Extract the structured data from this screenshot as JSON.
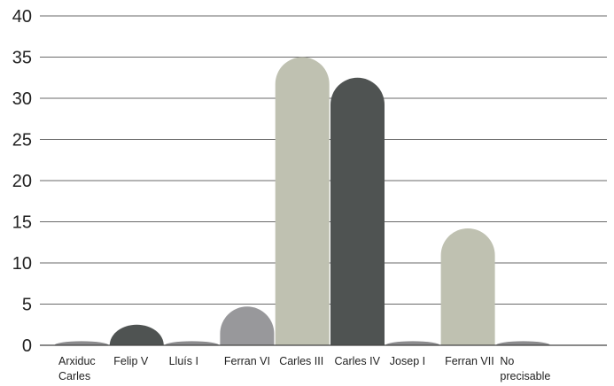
{
  "chart_data": {
    "type": "bar",
    "title": "",
    "xlabel": "",
    "ylabel": "",
    "ylim": [
      0,
      40
    ],
    "yticks": [
      0,
      5,
      10,
      15,
      20,
      25,
      30,
      35,
      40
    ],
    "grid": true,
    "legend": "none",
    "categories": [
      [
        "Arxiduc",
        "Carles"
      ],
      [
        "Felip V"
      ],
      [
        "Lluís I"
      ],
      [
        "Ferran VI"
      ],
      [
        "Carles III"
      ],
      [
        "Carles IV"
      ],
      [
        "Josep I"
      ],
      [
        "Ferran VII"
      ],
      [
        "No",
        "precisable"
      ]
    ],
    "values": [
      0.5,
      2.5,
      0.5,
      4.7,
      35,
      32.5,
      0.5,
      14.2,
      0.5
    ],
    "bar_colors": [
      "#8a8a8c",
      "#4f5352",
      "#8a8a8c",
      "#98989b",
      "#bfc1b1",
      "#4f5352",
      "#8a8a8c",
      "#bfc1b1",
      "#8a8a8c"
    ]
  }
}
